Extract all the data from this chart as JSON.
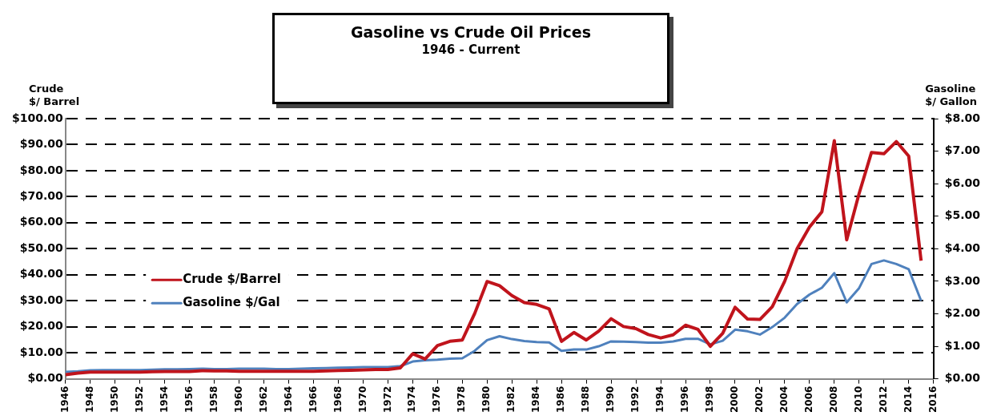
{
  "chart_data": {
    "type": "line",
    "title": "Gasoline vs Crude Oil Prices",
    "subtitle": "1946 - Current",
    "ylabel": "Crude\n$/ Barrel",
    "y2label": "Gasoline\n$/ Gallon",
    "x": [
      1946,
      1947,
      1948,
      1949,
      1950,
      1951,
      1952,
      1953,
      1954,
      1955,
      1956,
      1957,
      1958,
      1959,
      1960,
      1961,
      1962,
      1963,
      1964,
      1965,
      1966,
      1967,
      1968,
      1969,
      1970,
      1971,
      1972,
      1973,
      1974,
      1975,
      1976,
      1977,
      1978,
      1979,
      1980,
      1981,
      1982,
      1983,
      1984,
      1985,
      1986,
      1987,
      1988,
      1989,
      1990,
      1991,
      1992,
      1993,
      1994,
      1995,
      1996,
      1997,
      1998,
      1999,
      2000,
      2001,
      2002,
      2003,
      2004,
      2005,
      2006,
      2007,
      2008,
      2009,
      2010,
      2011,
      2012,
      2013,
      2014,
      2015
    ],
    "series": [
      {
        "name": "Crude $/Barrel",
        "color": "#c0141c",
        "values": [
          1.6,
          2.2,
          2.6,
          2.6,
          2.6,
          2.6,
          2.6,
          2.7,
          2.8,
          2.8,
          2.8,
          3.1,
          3.0,
          3.0,
          2.9,
          2.9,
          2.9,
          2.9,
          2.9,
          2.9,
          2.9,
          3.0,
          3.2,
          3.3,
          3.4,
          3.6,
          3.6,
          4.2,
          9.6,
          7.6,
          12.8,
          14.4,
          14.9,
          25.1,
          37.4,
          35.8,
          32.0,
          29.3,
          28.6,
          26.9,
          14.4,
          17.8,
          14.9,
          18.3,
          23.1,
          20.1,
          19.3,
          17.0,
          15.7,
          16.9,
          20.6,
          19.0,
          12.5,
          17.5,
          27.5,
          23.0,
          22.8,
          27.7,
          37.5,
          50.0,
          58.3,
          64.2,
          91.5,
          53.4,
          71.2,
          87.0,
          86.5,
          91.2,
          85.6,
          45.4
        ]
      },
      {
        "name": "Gasoline $/Gal",
        "color": "#4f81bd",
        "axis": "y2",
        "values": [
          0.21,
          0.23,
          0.26,
          0.27,
          0.27,
          0.27,
          0.27,
          0.28,
          0.29,
          0.29,
          0.3,
          0.31,
          0.3,
          0.3,
          0.31,
          0.31,
          0.31,
          0.3,
          0.3,
          0.31,
          0.32,
          0.33,
          0.34,
          0.35,
          0.36,
          0.36,
          0.36,
          0.39,
          0.53,
          0.57,
          0.59,
          0.62,
          0.63,
          0.86,
          1.19,
          1.31,
          1.22,
          1.16,
          1.13,
          1.12,
          0.86,
          0.9,
          0.9,
          1.0,
          1.15,
          1.14,
          1.13,
          1.11,
          1.11,
          1.15,
          1.23,
          1.23,
          1.06,
          1.17,
          1.51,
          1.46,
          1.36,
          1.59,
          1.88,
          2.3,
          2.59,
          2.8,
          3.25,
          2.35,
          2.79,
          3.53,
          3.64,
          3.53,
          3.37,
          2.4
        ]
      }
    ],
    "xlim": [
      1946,
      2016
    ],
    "xticks": [
      1946,
      1948,
      1950,
      1952,
      1954,
      1956,
      1958,
      1960,
      1962,
      1964,
      1966,
      1968,
      1970,
      1972,
      1974,
      1976,
      1978,
      1980,
      1982,
      1984,
      1986,
      1988,
      1990,
      1992,
      1994,
      1996,
      1998,
      2000,
      2002,
      2004,
      2006,
      2008,
      2010,
      2012,
      2014,
      2016
    ],
    "ylim": [
      0,
      100
    ],
    "yticks": [
      {
        "value": 0,
        "label": "$0.00"
      },
      {
        "value": 10,
        "label": "$10.00"
      },
      {
        "value": 20,
        "label": "$20.00"
      },
      {
        "value": 30,
        "label": "$30.00"
      },
      {
        "value": 40,
        "label": "$40.00"
      },
      {
        "value": 50,
        "label": "$50.00"
      },
      {
        "value": 60,
        "label": "$60.00"
      },
      {
        "value": 70,
        "label": "$70.00"
      },
      {
        "value": 80,
        "label": "$80.00"
      },
      {
        "value": 90,
        "label": "$90.00"
      },
      {
        "value": 100,
        "label": "$100.00"
      }
    ],
    "y2lim": [
      0,
      8
    ],
    "y2ticks": [
      {
        "value": 0,
        "label": "$0.00"
      },
      {
        "value": 1,
        "label": "$1.00"
      },
      {
        "value": 2,
        "label": "$2.00"
      },
      {
        "value": 3,
        "label": "$3.00"
      },
      {
        "value": 4,
        "label": "$4.00"
      },
      {
        "value": 5,
        "label": "$5.00"
      },
      {
        "value": 6,
        "label": "$6.00"
      },
      {
        "value": 7,
        "label": "$7.00"
      },
      {
        "value": 8,
        "label": "$8.00"
      }
    ],
    "grid": "y",
    "legend": "left",
    "marker": "none",
    "line_style": "solid"
  }
}
